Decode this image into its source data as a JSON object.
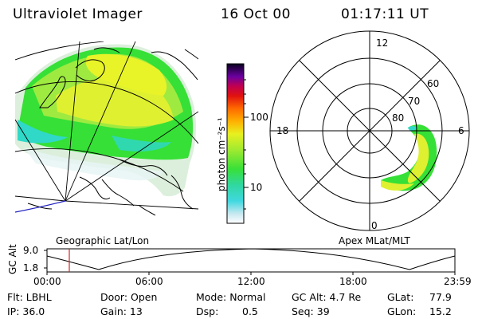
{
  "header": {
    "instrument": "Ultraviolet Imager",
    "date": "16 Oct 00",
    "time": "01:17:11 UT"
  },
  "colorbar": {
    "unit_label": "photon cm⁻²s⁻¹",
    "ticks": [
      "100",
      "10"
    ]
  },
  "polar_plot": {
    "labels": {
      "top": "12",
      "left": "18",
      "right": "6",
      "bottom": "0"
    },
    "rings": [
      "60",
      "70",
      "80"
    ],
    "caption": "Apex MLat/MLT"
  },
  "geo_map": {
    "caption": "Geographic Lat/Lon"
  },
  "timeline": {
    "ylabel": "GC Alt",
    "ymax": "9.0",
    "ymin": "1.8",
    "ticks": [
      "00:00",
      "06:00",
      "12:00",
      "18:00",
      "23:59"
    ],
    "marker_time": "01:17"
  },
  "status": {
    "flt": "Flt: LBHL",
    "ip": "IP: 36.0",
    "door": "Door: Open",
    "gain": "Gain: 13",
    "mode": "Mode: Normal",
    "dsp_label": "Dsp:",
    "dsp_value": "0.5",
    "gc_alt": "GC Alt: 4.7 Re",
    "seq": "Seq: 39",
    "glat_label": "GLat:",
    "glat_value": "77.9",
    "glon_label": "GLon:",
    "glon_value": "15.2"
  },
  "colors": {
    "aurora_green": "#36e036",
    "aurora_yellow": "#e6f02a",
    "aurora_cyan": "#30d8c8",
    "timeline_marker": "#e02020",
    "map_blue": "#2020c0"
  }
}
